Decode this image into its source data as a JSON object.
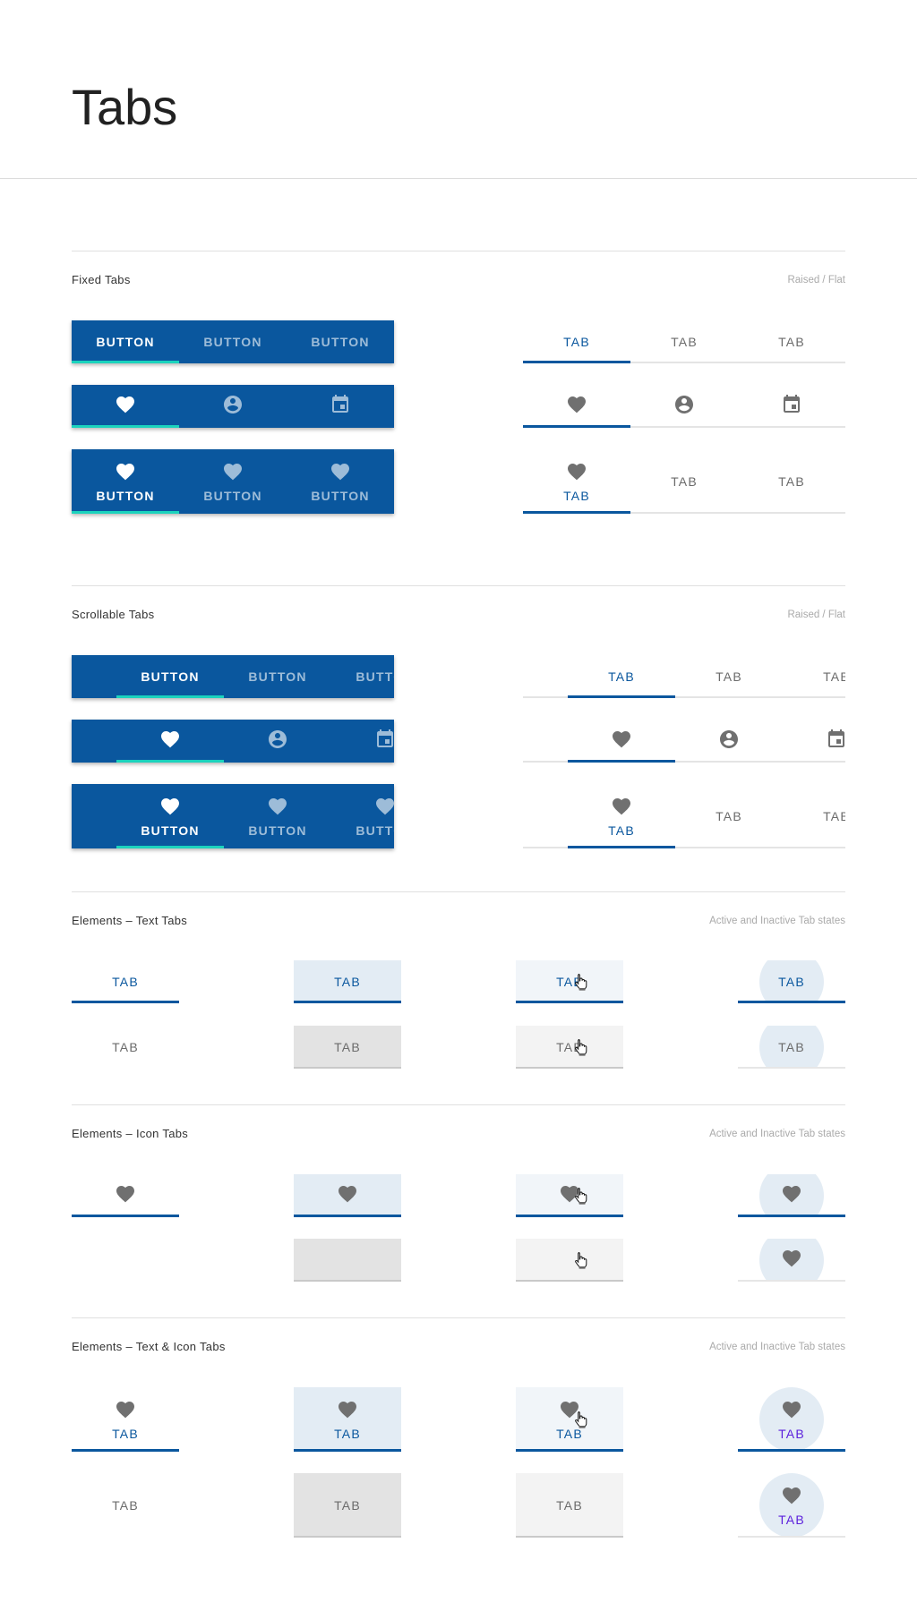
{
  "header": {
    "title": "Tabs"
  },
  "colors": {
    "primary": "#0a579e",
    "indicator_raised": "#1bd3bd",
    "inactive_text": "#6b6b6b",
    "icon_grey": "#707070",
    "pressed_active_bg": "#e3ecf4",
    "pressed_inactive_bg": "#e3e3e3",
    "hover_active_bg": "#f1f5f9",
    "hover_inactive_bg": "#f3f3f3",
    "focus_text_icon": "#5b1fdc"
  },
  "fixed_tabs": {
    "title": "Fixed Tabs",
    "note": "Raised / Flat",
    "active_index": 0,
    "raised": [
      {
        "labels": [
          "BUTTON",
          "BUTTON",
          "BUTTON"
        ]
      },
      {
        "icons": [
          "heart",
          "account-circle",
          "calendar"
        ]
      },
      {
        "labels": [
          "BUTTON",
          "BUTTON",
          "BUTTON"
        ],
        "icons": [
          "heart",
          "heart",
          "heart"
        ]
      }
    ],
    "flat": [
      {
        "labels": [
          "TAB",
          "TAB",
          "TAB"
        ]
      },
      {
        "icons": [
          "heart",
          "account-circle",
          "calendar"
        ]
      },
      {
        "labels": [
          "TAB",
          "TAB",
          "TAB"
        ],
        "icons": [
          "heart",
          null,
          null
        ]
      }
    ]
  },
  "scrollable_tabs": {
    "title": "Scrollable Tabs",
    "note": "Raised / Flat",
    "active_index": 0,
    "raised": [
      {
        "labels": [
          "BUTTON",
          "BUTTON",
          "BUTTON"
        ]
      },
      {
        "icons": [
          "heart",
          "account-circle",
          "calendar"
        ]
      },
      {
        "labels": [
          "BUTTON",
          "BUTTON",
          "BUTTON"
        ],
        "icons": [
          "heart",
          "heart",
          "heart"
        ]
      }
    ],
    "flat": [
      {
        "labels": [
          "TAB",
          "TAB",
          "TAB"
        ]
      },
      {
        "icons": [
          "heart",
          "account-circle",
          "calendar"
        ]
      },
      {
        "labels": [
          "TAB",
          "TAB",
          "TAB"
        ],
        "icons": [
          "heart",
          null,
          null
        ]
      }
    ]
  },
  "state_columns": [
    "default",
    "pressed",
    "hover",
    "focus"
  ],
  "text_tabs": {
    "title": "Elements – Text Tabs",
    "note": "Active and Inactive Tab states",
    "rows": [
      {
        "state": "active",
        "labels": [
          "TAB",
          "TAB",
          "TAB",
          "TAB"
        ],
        "icons": [
          null,
          null,
          null,
          null
        ],
        "hover_cursor": true
      },
      {
        "state": "inactive",
        "labels": [
          "TAB",
          "TAB",
          "TAB",
          "TAB"
        ],
        "icons": [
          null,
          null,
          null,
          null
        ],
        "hover_cursor": true
      }
    ]
  },
  "icon_tabs": {
    "title": "Elements – Icon Tabs",
    "note": "Active and Inactive Tab states",
    "rows": [
      {
        "state": "active",
        "labels": [
          null,
          null,
          null,
          null
        ],
        "icons": [
          "heart",
          "heart",
          "heart",
          "heart"
        ],
        "hover_cursor": true
      },
      {
        "state": "inactive",
        "labels": [
          null,
          null,
          null,
          null
        ],
        "icons": [
          null,
          null,
          null,
          "heart"
        ],
        "hover_cursor": true
      }
    ]
  },
  "text_icon_tabs": {
    "title": "Elements – Text & Icon Tabs",
    "note": "Active and Inactive Tab states",
    "rows": [
      {
        "state": "active",
        "labels": [
          "TAB",
          "TAB",
          "TAB",
          "TAB"
        ],
        "icons": [
          "heart",
          "heart",
          "heart",
          "heart"
        ],
        "hover_cursor": true
      },
      {
        "state": "inactive",
        "labels": [
          "TAB",
          "TAB",
          "TAB",
          "TAB"
        ],
        "icons": [
          null,
          null,
          null,
          "heart"
        ],
        "hover_cursor": false
      }
    ]
  }
}
